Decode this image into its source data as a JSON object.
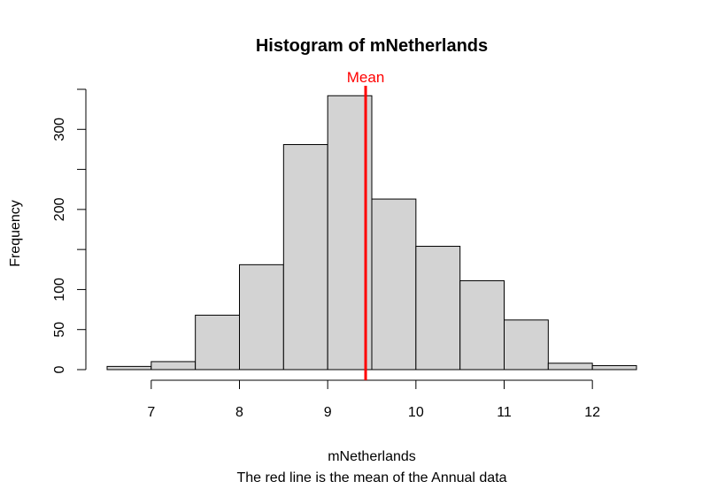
{
  "chart_data": {
    "type": "bar",
    "title": "Histogram of mNetherlands",
    "xlabel": "mNetherlands",
    "ylabel": "Frequency",
    "subtitle": "The red line is the mean of the Annual data",
    "bin_edges": [
      6.5,
      7.0,
      7.5,
      8.0,
      8.5,
      9.0,
      9.5,
      10.0,
      10.5,
      11.0,
      11.5,
      12.0,
      12.5
    ],
    "values": [
      4,
      10,
      68,
      131,
      281,
      342,
      213,
      154,
      111,
      62,
      8,
      5
    ],
    "bar_color": "#d3d3d3",
    "xticks": [
      7,
      8,
      9,
      10,
      11,
      12
    ],
    "xtick_labels": [
      "7",
      "8",
      "9",
      "10",
      "11",
      "12"
    ],
    "yticks": [
      0,
      50,
      100,
      150,
      200,
      250,
      300,
      350
    ],
    "ytick_labels": [
      "0",
      "50",
      "100",
      "",
      "200",
      "",
      "300",
      ""
    ],
    "xlim": [
      6.5,
      12.5
    ],
    "ylim": [
      0,
      350
    ],
    "mean_line": {
      "x": 9.43,
      "label": "Mean",
      "color": "#ff0000"
    },
    "grid": false,
    "legend": "none"
  }
}
